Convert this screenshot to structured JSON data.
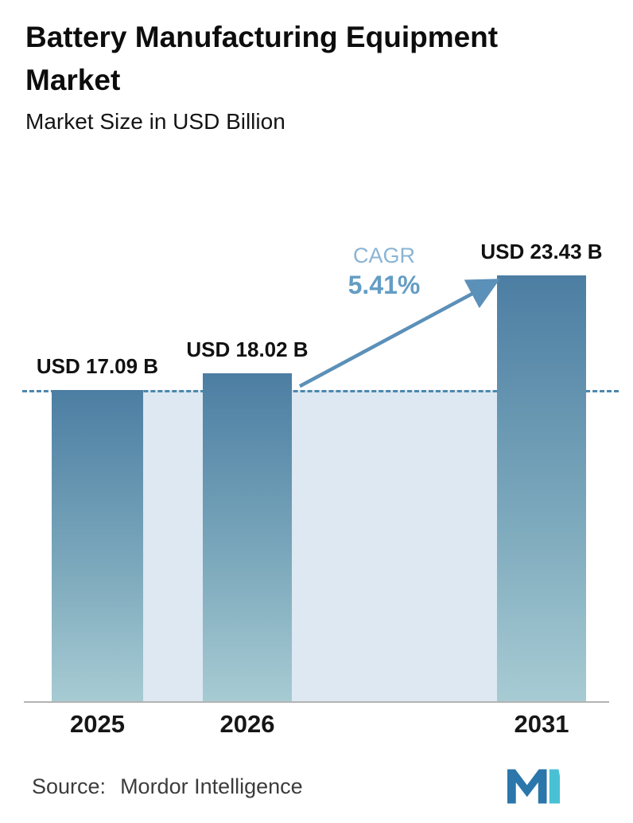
{
  "header": {
    "title": "Battery Manufacturing Equipment Market",
    "subtitle": "Market Size in USD Billion"
  },
  "chart_data": {
    "type": "bar",
    "title": "Battery Manufacturing Equipment Market",
    "subtitle": "Market Size in USD Billion",
    "unit": "USD Billion",
    "categories": [
      "2025",
      "2026",
      "2031"
    ],
    "values": [
      17.09,
      18.02,
      23.43
    ],
    "value_labels": [
      "USD 17.09 B",
      "USD 18.02 B",
      "USD 23.43 B"
    ],
    "ylim": [
      0,
      26.3
    ],
    "baseline_value": 17.09,
    "annotations": {
      "cagr_label": "CAGR",
      "cagr_value": "5.41%"
    },
    "grid": false,
    "legend": "none",
    "colors": {
      "bar_top": "#4c7ea3",
      "bar_bottom": "#a7cbd3",
      "band": "#dde8f2",
      "dashed_line": "#4d87ae",
      "arrow": "#5b90b8",
      "cagr_label": "#8ab4d4",
      "cagr_value": "#649dc4",
      "axis": "#b3b3b3"
    }
  },
  "footer": {
    "source_label": "Source:",
    "source_value": "Mordor Intelligence"
  }
}
